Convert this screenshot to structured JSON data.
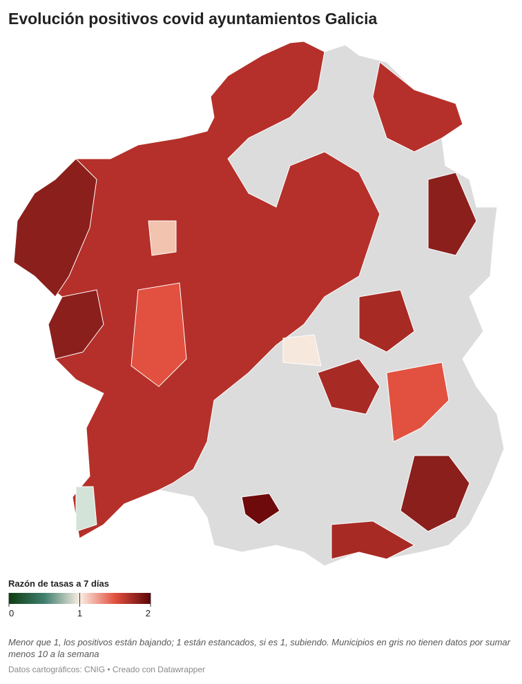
{
  "title": "Evolución positivos covid ayuntamientos Galicia",
  "legend": {
    "title": "Razón de tasas a 7 días",
    "range": [
      0,
      2
    ],
    "ticks": [
      0,
      1,
      2
    ],
    "colors": [
      "#0f3d12",
      "#3f7f6e",
      "#fbeee4",
      "#e2503f",
      "#5c0508"
    ]
  },
  "note": "Menor que 1, los positivos están bajando; 1 están estancados, si es 1, subiendo. Municipios en gris no tienen datos por sumar menos 10 a la semana",
  "source": "Datos cartográficos: CNIG • Creado con Datawrapper"
}
